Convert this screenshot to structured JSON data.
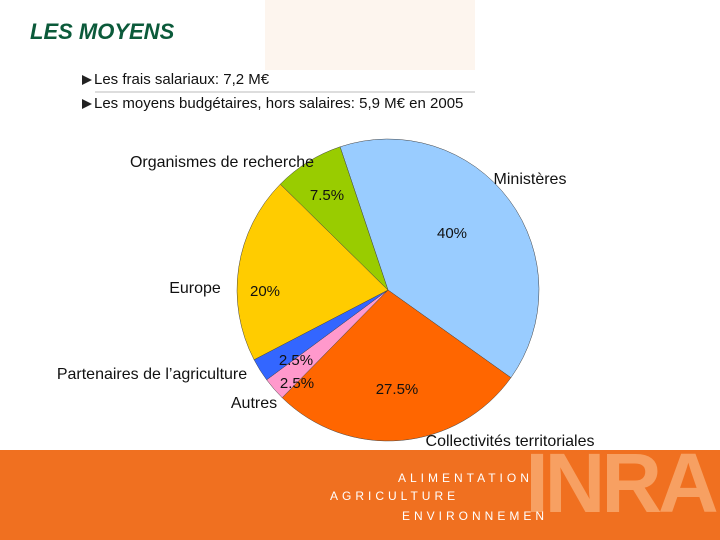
{
  "header": {
    "title": "LES MOYENS",
    "bullets": [
      "Les frais salariaux: 7,2 M€",
      "Les moyens budgétaires, hors salaires: 5,9 M€ en 2005"
    ]
  },
  "chart_data": {
    "type": "pie",
    "categories": [
      "Ministères",
      "Collectivités territoriales",
      "Autres",
      "Partenaires de l’agriculture",
      "Europe",
      "Organismes de recherche"
    ],
    "values": [
      40,
      27.5,
      2.5,
      2.5,
      20,
      7.5
    ],
    "value_labels": [
      "40%",
      "27.5%",
      "2.5%",
      "2.5%",
      "20%",
      "7.5%"
    ],
    "colors": [
      "#99ccff",
      "#ff6600",
      "#ff99cc",
      "#3366ff",
      "#ffcc00",
      "#99cc00"
    ]
  },
  "footer": {
    "lines": [
      "ALIMENTATION",
      "AGRICULTURE",
      "ENVIRONNEMEN"
    ],
    "logo": "INRA"
  }
}
